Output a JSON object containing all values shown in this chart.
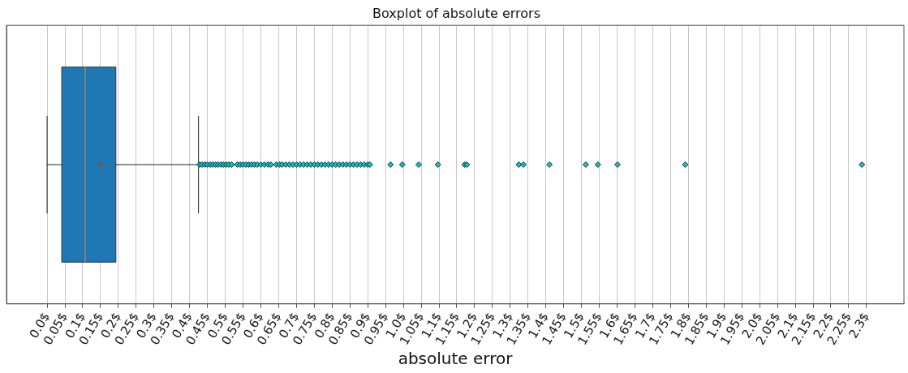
{
  "chart_data": {
    "type": "box",
    "title": "Boxplot of absolute errors",
    "xlabel": "absolute error",
    "orientation": "horizontal",
    "categories": [
      null
    ],
    "color": "#1f77b4",
    "marker": "diamond",
    "grid": "x",
    "xlim": [
      -0.114,
      2.405
    ],
    "xticks": [
      {
        "value": 0,
        "label": "0.0$"
      },
      {
        "value": 0.05,
        "label": "0.05$"
      },
      {
        "value": 0.1,
        "label": "0.1$"
      },
      {
        "value": 0.15,
        "label": "0.15$"
      },
      {
        "value": 0.2,
        "label": "0.2$"
      },
      {
        "value": 0.25,
        "label": "0.25$"
      },
      {
        "value": 0.3,
        "label": "0.3$"
      },
      {
        "value": 0.35,
        "label": "0.35$"
      },
      {
        "value": 0.4,
        "label": "0.4$"
      },
      {
        "value": 0.45,
        "label": "0.45$"
      },
      {
        "value": 0.5,
        "label": "0.5$"
      },
      {
        "value": 0.55,
        "label": "0.55$"
      },
      {
        "value": 0.6,
        "label": "0.6$"
      },
      {
        "value": 0.65,
        "label": "0.65$"
      },
      {
        "value": 0.7,
        "label": "0.7$"
      },
      {
        "value": 0.75,
        "label": "0.75$"
      },
      {
        "value": 0.8,
        "label": "0.8$"
      },
      {
        "value": 0.85,
        "label": "0.85$"
      },
      {
        "value": 0.9,
        "label": "0.9$"
      },
      {
        "value": 0.95,
        "label": "0.95$"
      },
      {
        "value": 1.0,
        "label": "1.0$"
      },
      {
        "value": 1.05,
        "label": "1.05$"
      },
      {
        "value": 1.1,
        "label": "1.1$"
      },
      {
        "value": 1.15,
        "label": "1.15$"
      },
      {
        "value": 1.2,
        "label": "1.2$"
      },
      {
        "value": 1.25,
        "label": "1.25$"
      },
      {
        "value": 1.3,
        "label": "1.3$"
      },
      {
        "value": 1.35,
        "label": "1.35$"
      },
      {
        "value": 1.4,
        "label": "1.4$"
      },
      {
        "value": 1.45,
        "label": "1.45$"
      },
      {
        "value": 1.5,
        "label": "1.5$"
      },
      {
        "value": 1.55,
        "label": "1.55$"
      },
      {
        "value": 1.6,
        "label": "1.6$"
      },
      {
        "value": 1.65,
        "label": "1.65$"
      },
      {
        "value": 1.7,
        "label": "1.7$"
      },
      {
        "value": 1.75,
        "label": "1.75$"
      },
      {
        "value": 1.8,
        "label": "1.8$"
      },
      {
        "value": 1.85,
        "label": "1.85$"
      },
      {
        "value": 1.9,
        "label": "1.9$"
      },
      {
        "value": 1.95,
        "label": "1.95$"
      },
      {
        "value": 2.0,
        "label": "2.0$"
      },
      {
        "value": 2.05,
        "label": "2.05$"
      },
      {
        "value": 2.1,
        "label": "2.1$"
      },
      {
        "value": 2.15,
        "label": "2.15$"
      },
      {
        "value": 2.2,
        "label": "2.2$"
      },
      {
        "value": 2.25,
        "label": "2.25$"
      },
      {
        "value": 2.3,
        "label": "2.3$"
      }
    ],
    "boxes": [
      {
        "low": 0.0,
        "q1": 0.041,
        "median": 0.107,
        "q3": 0.193,
        "high": 0.425,
        "mean": 0.15,
        "outliers": [
          0.428,
          0.435,
          0.443,
          0.45,
          0.458,
          0.465,
          0.473,
          0.48,
          0.488,
          0.495,
          0.503,
          0.51,
          0.518,
          0.534,
          0.542,
          0.55,
          0.558,
          0.566,
          0.574,
          0.582,
          0.59,
          0.6,
          0.61,
          0.62,
          0.628,
          0.643,
          0.652,
          0.66,
          0.67,
          0.68,
          0.69,
          0.7,
          0.71,
          0.72,
          0.73,
          0.74,
          0.75,
          0.76,
          0.77,
          0.78,
          0.79,
          0.8,
          0.81,
          0.82,
          0.83,
          0.84,
          0.85,
          0.86,
          0.87,
          0.88,
          0.89,
          0.9,
          0.906,
          0.964,
          0.997,
          1.043,
          1.097,
          1.172,
          1.178,
          1.324,
          1.337,
          1.41,
          1.512,
          1.546,
          1.601,
          1.791,
          2.287
        ]
      }
    ]
  }
}
